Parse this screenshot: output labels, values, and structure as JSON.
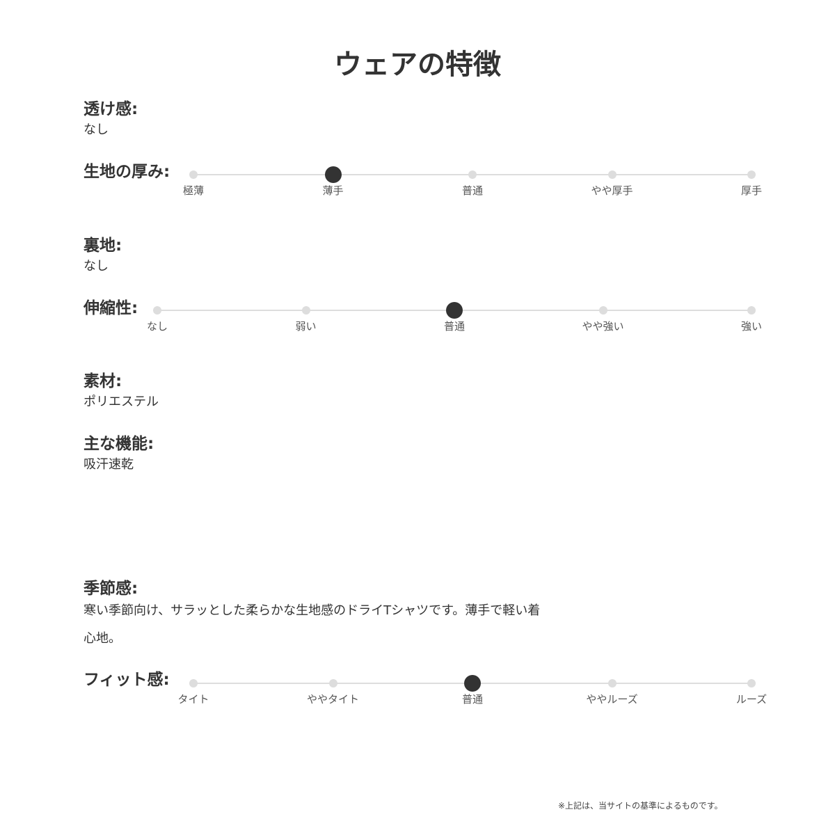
{
  "title": "ウェアの特徴",
  "transparency": {
    "label": "透け感:",
    "value": "なし"
  },
  "thickness": {
    "label": "生地の厚み:",
    "options": [
      "極薄",
      "薄手",
      "普通",
      "やや厚手",
      "厚手"
    ],
    "selected": 1
  },
  "lining": {
    "label": "裏地:",
    "value": "なし"
  },
  "stretch": {
    "label": "伸縮性:",
    "options": [
      "なし",
      "弱い",
      "普通",
      "やや強い",
      "強い"
    ],
    "selected": 2
  },
  "material": {
    "label": "素材:",
    "value": "ポリエステル"
  },
  "function": {
    "label": "主な機能:",
    "value": "吸汗速乾"
  },
  "season": {
    "label": "季節感:",
    "value_line1": "寒い季節向け、サラッとした柔らかな生地感のドライTシャツです。薄手で軽い着",
    "value_line2": "心地。"
  },
  "fit": {
    "label": "フィット感:",
    "options": [
      "タイト",
      "ややタイト",
      "普通",
      "ややルーズ",
      "ルーズ"
    ],
    "selected": 2
  },
  "note": "※上記は、当サイトの基準によるものです。",
  "colors": {
    "text": "#333333",
    "track": "#dddddd",
    "selected": "#333333"
  }
}
